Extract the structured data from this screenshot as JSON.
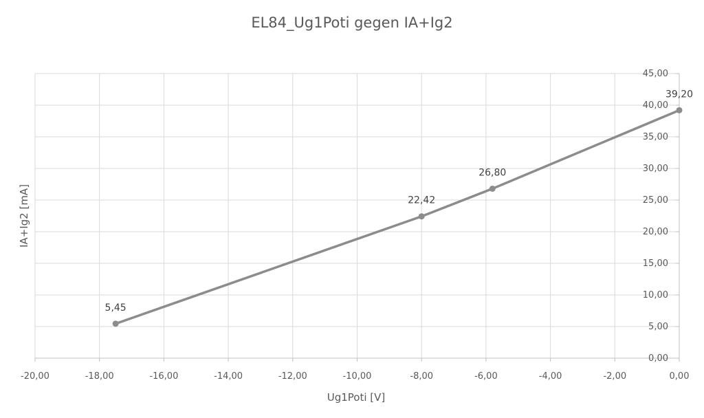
{
  "chart_data": {
    "type": "line",
    "title": "EL84_Ug1Poti gegen IA+Ig2",
    "xlabel": "Ug1Poti [V]",
    "ylabel": "IA+Ig2 [mA]",
    "xlim": [
      -20,
      0
    ],
    "ylim": [
      0,
      45
    ],
    "x_ticks": [
      "-20,00",
      "-18,00",
      "-16,00",
      "-14,00",
      "-12,00",
      "-10,00",
      "-8,00",
      "-6,00",
      "-4,00",
      "-2,00",
      "0,00"
    ],
    "y_ticks": [
      "0,00",
      "5,00",
      "10,00",
      "15,00",
      "20,00",
      "25,00",
      "30,00",
      "35,00",
      "40,00",
      "45,00"
    ],
    "grid": true,
    "legend": "none",
    "series": [
      {
        "color": "#8c8c8c",
        "points": [
          {
            "x": -17.5,
            "y": 5.45,
            "label": "5,45"
          },
          {
            "x": -8.0,
            "y": 22.42,
            "label": "22,42"
          },
          {
            "x": -5.8,
            "y": 26.8,
            "label": "26,80"
          },
          {
            "x": 0.0,
            "y": 39.2,
            "label": "39,20"
          }
        ]
      }
    ]
  }
}
